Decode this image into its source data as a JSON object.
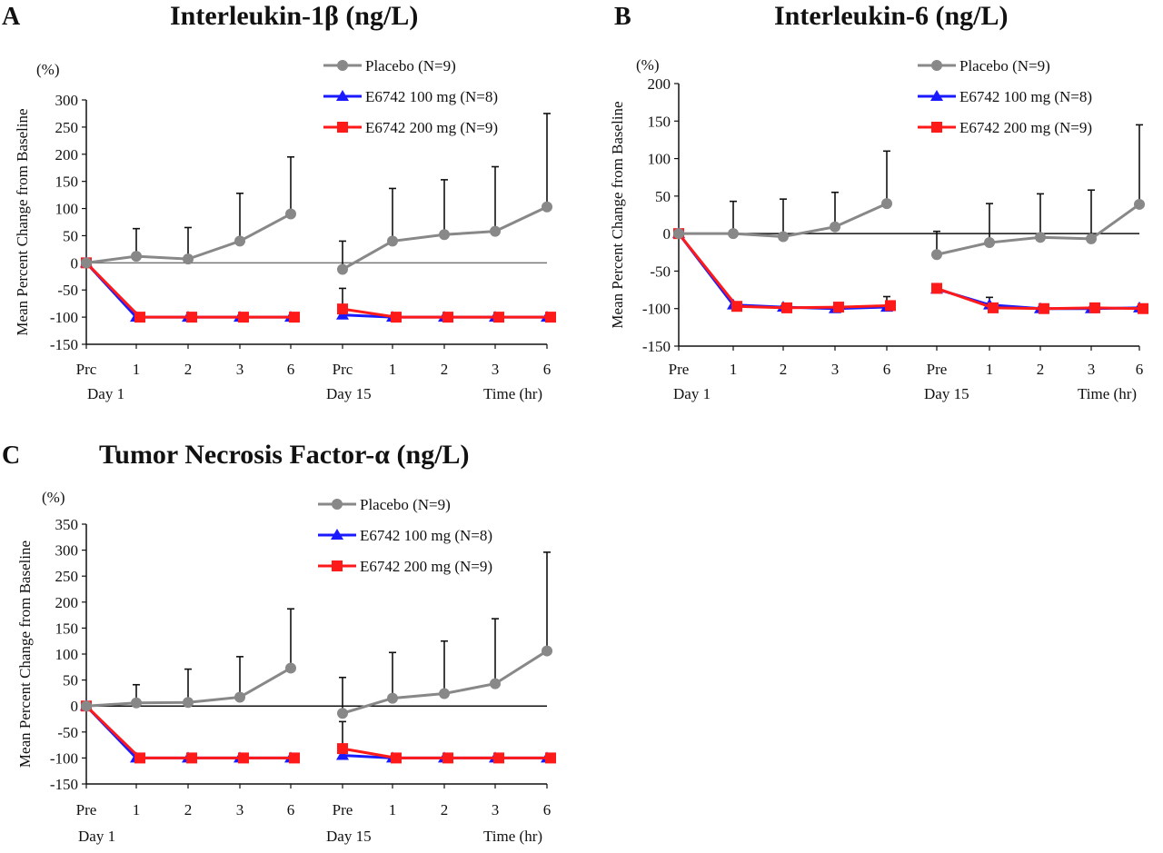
{
  "chart_data": [
    {
      "panel": "A",
      "type": "line",
      "title": "Interleukin-1β (ng/L)",
      "ylabel": "Mean Percent Change from Baseline",
      "yunit": "(%)",
      "ylim": [
        -150,
        300
      ],
      "yticks": [
        -150,
        -100,
        -50,
        0,
        50,
        100,
        150,
        200,
        250,
        300
      ],
      "categories": [
        "Prc",
        "1",
        "2",
        "3",
        "6",
        "Prc",
        "1",
        "2",
        "3",
        "6"
      ],
      "group_labels": [
        "Day 1",
        "Day 15",
        "Time (hr)"
      ],
      "legend": "top-right",
      "series": [
        {
          "name": "Placebo (N=9)",
          "color": "#888888",
          "marker": "circle",
          "segments": [
            {
              "x": [
                "Prc",
                "1",
                "2",
                "3",
                "6"
              ],
              "values": [
                0,
                12,
                7,
                40,
                90
              ],
              "error_upper": [
                null,
                63,
                65,
                128,
                195
              ]
            },
            {
              "x": [
                "Prc",
                "1",
                "2",
                "3",
                "6"
              ],
              "values": [
                -12,
                40,
                52,
                58,
                103
              ],
              "error_upper": [
                40,
                137,
                153,
                177,
                275
              ]
            }
          ]
        },
        {
          "name": "E6742 100 mg (N=8)",
          "color": "#1a1aff",
          "marker": "triangle",
          "segments": [
            {
              "x": [
                "Prc",
                "1",
                "2",
                "3",
                "6"
              ],
              "values": [
                0,
                -100,
                -100,
                -100,
                -100
              ]
            },
            {
              "x": [
                "Prc",
                "1",
                "2",
                "3",
                "6"
              ],
              "values": [
                -96,
                -100,
                -100,
                -100,
                -100
              ]
            }
          ]
        },
        {
          "name": "E6742 200 mg (N=9)",
          "color": "#ff1a1a",
          "marker": "square",
          "segments": [
            {
              "x": [
                "Prc",
                "1",
                "2",
                "3",
                "6"
              ],
              "values": [
                0,
                -100,
                -100,
                -100,
                -100
              ],
              "error_upper": [
                null,
                null,
                null,
                null,
                null
              ]
            },
            {
              "x": [
                "Prc",
                "1",
                "2",
                "3",
                "6"
              ],
              "values": [
                -85,
                -100,
                -100,
                -100,
                -100
              ],
              "error_upper": [
                -47,
                null,
                null,
                null,
                null
              ]
            }
          ]
        }
      ]
    },
    {
      "panel": "B",
      "type": "line",
      "title": "Interleukin-6 (ng/L)",
      "ylabel": "Mean Percent Change from Baseline",
      "yunit": "(%)",
      "ylim": [
        -150,
        200
      ],
      "yticks": [
        -150,
        -100,
        -50,
        0,
        50,
        100,
        150,
        200
      ],
      "categories": [
        "Pre",
        "1",
        "2",
        "3",
        "6",
        "Pre",
        "1",
        "2",
        "3",
        "6"
      ],
      "group_labels": [
        "Day 1",
        "Day 15",
        "Time (hr)"
      ],
      "legend": "top-right",
      "series": [
        {
          "name": "Placebo (N=9)",
          "color": "#888888",
          "marker": "circle",
          "segments": [
            {
              "x": [
                "Pre",
                "1",
                "2",
                "3",
                "6"
              ],
              "values": [
                0,
                0,
                -4,
                9,
                40
              ],
              "error_upper": [
                null,
                43,
                46,
                55,
                110
              ]
            },
            {
              "x": [
                "Pre",
                "1",
                "2",
                "3",
                "6"
              ],
              "values": [
                -28,
                -12,
                -5,
                -7,
                39
              ],
              "error_upper": [
                3,
                40,
                53,
                58,
                145
              ]
            }
          ]
        },
        {
          "name": "E6742 100 mg (N=8)",
          "color": "#1a1aff",
          "marker": "triangle",
          "segments": [
            {
              "x": [
                "Pre",
                "1",
                "2",
                "3",
                "6"
              ],
              "values": [
                0,
                -95,
                -98,
                -100,
                -98
              ]
            },
            {
              "x": [
                "Pre",
                "1",
                "2",
                "3",
                "6"
              ],
              "values": [
                -74,
                -95,
                -100,
                -100,
                -99
              ]
            }
          ]
        },
        {
          "name": "E6742 200 mg (N=9)",
          "color": "#ff1a1a",
          "marker": "square",
          "segments": [
            {
              "x": [
                "Pre",
                "1",
                "2",
                "3",
                "6"
              ],
              "values": [
                0,
                -97,
                -99,
                -98,
                -96
              ],
              "error_upper": [
                null,
                null,
                null,
                null,
                -84
              ]
            },
            {
              "x": [
                "Pre",
                "1",
                "2",
                "3",
                "6"
              ],
              "values": [
                -73,
                -99,
                -100,
                -99,
                -100
              ],
              "error_upper": [
                null,
                -85,
                null,
                null,
                null
              ]
            }
          ]
        }
      ]
    },
    {
      "panel": "C",
      "type": "line",
      "title": "Tumor Necrosis Factor-α (ng/L)",
      "ylabel": "Mean Percent Change from Baseline",
      "yunit": "(%)",
      "ylim": [
        -150,
        350
      ],
      "yticks": [
        -150,
        -100,
        -50,
        0,
        50,
        100,
        150,
        200,
        250,
        300,
        350
      ],
      "categories": [
        "Pre",
        "1",
        "2",
        "3",
        "6",
        "Pre",
        "1",
        "2",
        "3",
        "6"
      ],
      "group_labels": [
        "Day 1",
        "Day 15",
        "Time (hr)"
      ],
      "legend": "top-right",
      "series": [
        {
          "name": "Placebo (N=9)",
          "color": "#888888",
          "marker": "circle",
          "segments": [
            {
              "x": [
                "Pre",
                "1",
                "2",
                "3",
                "6"
              ],
              "values": [
                0,
                6,
                7,
                17,
                73
              ],
              "error_upper": [
                null,
                41,
                71,
                95,
                187
              ]
            },
            {
              "x": [
                "Pre",
                "1",
                "2",
                "3",
                "6"
              ],
              "values": [
                -14,
                15,
                24,
                43,
                106
              ],
              "error_upper": [
                55,
                103,
                125,
                168,
                296
              ]
            }
          ]
        },
        {
          "name": "E6742 100 mg (N=8)",
          "color": "#1a1aff",
          "marker": "triangle",
          "segments": [
            {
              "x": [
                "Pre",
                "1",
                "2",
                "3",
                "6"
              ],
              "values": [
                0,
                -100,
                -100,
                -100,
                -100
              ]
            },
            {
              "x": [
                "Pre",
                "1",
                "2",
                "3",
                "6"
              ],
              "values": [
                -95,
                -100,
                -100,
                -100,
                -100
              ]
            }
          ]
        },
        {
          "name": "E6742 200 mg (N=9)",
          "color": "#ff1a1a",
          "marker": "square",
          "segments": [
            {
              "x": [
                "Pre",
                "1",
                "2",
                "3",
                "6"
              ],
              "values": [
                0,
                -100,
                -100,
                -100,
                -100
              ],
              "error_upper": [
                null,
                null,
                null,
                null,
                null
              ]
            },
            {
              "x": [
                "Pre",
                "1",
                "2",
                "3",
                "6"
              ],
              "values": [
                -82,
                -100,
                -100,
                -100,
                -100
              ],
              "error_upper": [
                -30,
                null,
                null,
                null,
                null
              ]
            }
          ]
        }
      ]
    }
  ]
}
